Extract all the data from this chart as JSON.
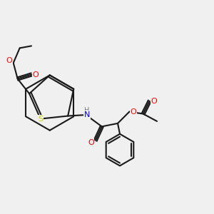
{
  "background_color": "#f0f0f0",
  "bond_color": "#1a1a1a",
  "atom_colors": {
    "O": "#ff0000",
    "N": "#0000ff",
    "S": "#cccc00",
    "H": "#708090",
    "C": "#1a1a1a"
  },
  "title": "",
  "figsize": [
    3.0,
    3.0
  ],
  "dpi": 100
}
